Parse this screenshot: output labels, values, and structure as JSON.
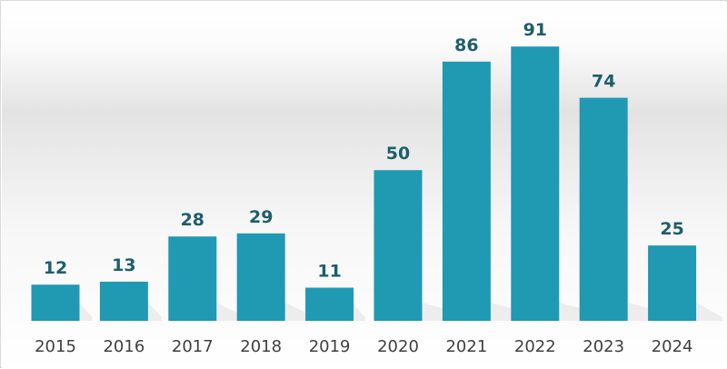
{
  "chart_data": {
    "type": "bar",
    "categories": [
      "2015",
      "2016",
      "2017",
      "2018",
      "2019",
      "2020",
      "2021",
      "2022",
      "2023",
      "2024"
    ],
    "values": [
      12,
      13,
      28,
      29,
      11,
      50,
      86,
      91,
      74,
      25
    ],
    "title": "",
    "xlabel": "",
    "ylabel": "",
    "ylim": [
      0,
      100
    ],
    "grid": false,
    "legend": "none",
    "data_labels": true
  },
  "colors": {
    "bar": "#2099b3",
    "value_label": "#1d5e6c",
    "tick_label": "#404040",
    "background_top": "#ffffff",
    "background_band": "#e3e3e3"
  }
}
